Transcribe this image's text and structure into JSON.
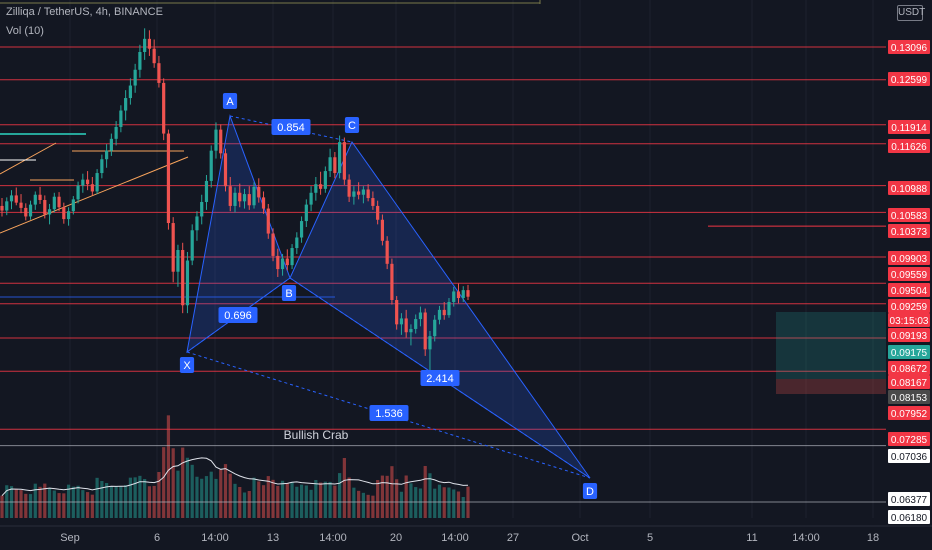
{
  "header": {
    "symbol_line": "Zilliqa / TetherUS, 4h, BINANCE",
    "volume_line": "Vol (10)",
    "currency": "USDT"
  },
  "colors": {
    "background": "#131722",
    "up": "#26a69a",
    "down": "#ef5350",
    "pattern": "#2962ff",
    "level_line": "#f23645",
    "price_badge": "#f23645",
    "green_badge": "#26a69a",
    "grey_badge": "#4a4a4a",
    "white_badge": "#ffffff"
  },
  "chart_data": {
    "type": "candlestick",
    "title": "Zilliqa / TetherUS, 4h, BINANCE",
    "x_tick_labels": [
      "Sep",
      "6",
      "14:00",
      "13",
      "14:00",
      "20",
      "14:00",
      "27",
      "Oct",
      "5",
      "11",
      "14:00",
      "18"
    ],
    "price_axis_labels": [
      {
        "value": "0.13096",
        "style": "red"
      },
      {
        "value": "0.12599",
        "style": "red"
      },
      {
        "value": "0.11914",
        "style": "red"
      },
      {
        "value": "0.11626",
        "style": "red"
      },
      {
        "value": "0.10988",
        "style": "red"
      },
      {
        "value": "0.10583",
        "style": "red"
      },
      {
        "value": "0.10373",
        "style": "red"
      },
      {
        "value": "0.09903",
        "style": "red"
      },
      {
        "value": "0.09559",
        "style": "red"
      },
      {
        "value": "0.09504",
        "style": "red"
      },
      {
        "value": "0.09259",
        "style": "red"
      },
      {
        "value": "03:15:03",
        "style": "red"
      },
      {
        "value": "0.09193",
        "style": "red"
      },
      {
        "value": "0.09175",
        "style": "green"
      },
      {
        "value": "0.08672",
        "style": "red"
      },
      {
        "value": "0.08167",
        "style": "red"
      },
      {
        "value": "0.08153",
        "style": "grey"
      },
      {
        "value": "0.07952",
        "style": "red"
      },
      {
        "value": "0.07285",
        "style": "red"
      },
      {
        "value": "0.07036",
        "style": "white"
      },
      {
        "value": "0.06377",
        "style": "white"
      },
      {
        "value": "0.06180",
        "style": "white"
      }
    ],
    "horizontal_levels": [
      0.13096,
      0.12599,
      0.11914,
      0.11626,
      0.10988,
      0.10583,
      0.09903,
      0.09504,
      0.09193,
      0.08672,
      0.08167,
      0.07285
    ],
    "harmonic_pattern": {
      "name": "Bullish Crab",
      "points": [
        {
          "label": "X",
          "price": 0.0875
        },
        {
          "label": "A",
          "price": 0.1196
        },
        {
          "label": "B",
          "price": 0.0953
        },
        {
          "label": "C",
          "price": 0.1171
        },
        {
          "label": "D",
          "price": 0.0735
        }
      ],
      "ratios": [
        {
          "label": "0.854",
          "between": "A-C"
        },
        {
          "label": "0.696",
          "between": "X-B"
        },
        {
          "label": "2.414",
          "between": "B-D"
        },
        {
          "label": "1.536",
          "between": "X-D"
        }
      ]
    },
    "candles": [
      {
        "o": 0.1068,
        "h": 0.108,
        "l": 0.1052,
        "c": 0.1061
      },
      {
        "o": 0.1061,
        "h": 0.1081,
        "l": 0.1054,
        "c": 0.1075
      },
      {
        "o": 0.1075,
        "h": 0.1092,
        "l": 0.1063,
        "c": 0.1084
      },
      {
        "o": 0.1084,
        "h": 0.1096,
        "l": 0.1069,
        "c": 0.1073
      },
      {
        "o": 0.1073,
        "h": 0.1086,
        "l": 0.1057,
        "c": 0.1065
      },
      {
        "o": 0.1065,
        "h": 0.1072,
        "l": 0.1046,
        "c": 0.1052
      },
      {
        "o": 0.1052,
        "h": 0.1076,
        "l": 0.1047,
        "c": 0.107
      },
      {
        "o": 0.107,
        "h": 0.109,
        "l": 0.1062,
        "c": 0.1085
      },
      {
        "o": 0.1085,
        "h": 0.1097,
        "l": 0.1071,
        "c": 0.1077
      },
      {
        "o": 0.1077,
        "h": 0.1084,
        "l": 0.1049,
        "c": 0.1055
      },
      {
        "o": 0.1055,
        "h": 0.1071,
        "l": 0.104,
        "c": 0.1063
      },
      {
        "o": 0.1063,
        "h": 0.1088,
        "l": 0.1058,
        "c": 0.1082
      },
      {
        "o": 0.1082,
        "h": 0.1089,
        "l": 0.106,
        "c": 0.1066
      },
      {
        "o": 0.1066,
        "h": 0.1073,
        "l": 0.1041,
        "c": 0.1048
      },
      {
        "o": 0.1048,
        "h": 0.1066,
        "l": 0.1038,
        "c": 0.106
      },
      {
        "o": 0.106,
        "h": 0.1083,
        "l": 0.1055,
        "c": 0.1078
      },
      {
        "o": 0.1078,
        "h": 0.1105,
        "l": 0.1072,
        "c": 0.1099
      },
      {
        "o": 0.1099,
        "h": 0.1117,
        "l": 0.1088,
        "c": 0.1108
      },
      {
        "o": 0.1108,
        "h": 0.1121,
        "l": 0.1092,
        "c": 0.1101
      },
      {
        "o": 0.1101,
        "h": 0.1112,
        "l": 0.1084,
        "c": 0.109
      },
      {
        "o": 0.109,
        "h": 0.1124,
        "l": 0.1086,
        "c": 0.1118
      },
      {
        "o": 0.1118,
        "h": 0.1146,
        "l": 0.111,
        "c": 0.1139
      },
      {
        "o": 0.1139,
        "h": 0.1162,
        "l": 0.1126,
        "c": 0.1152
      },
      {
        "o": 0.1152,
        "h": 0.1178,
        "l": 0.1144,
        "c": 0.117
      },
      {
        "o": 0.117,
        "h": 0.1197,
        "l": 0.116,
        "c": 0.1188
      },
      {
        "o": 0.1188,
        "h": 0.1221,
        "l": 0.118,
        "c": 0.1213
      },
      {
        "o": 0.1213,
        "h": 0.1244,
        "l": 0.1198,
        "c": 0.1232
      },
      {
        "o": 0.1232,
        "h": 0.1262,
        "l": 0.1222,
        "c": 0.1251
      },
      {
        "o": 0.1251,
        "h": 0.1284,
        "l": 0.124,
        "c": 0.1275
      },
      {
        "o": 0.1275,
        "h": 0.1313,
        "l": 0.1263,
        "c": 0.1302
      },
      {
        "o": 0.1302,
        "h": 0.1338,
        "l": 0.129,
        "c": 0.1322
      },
      {
        "o": 0.1322,
        "h": 0.1335,
        "l": 0.1296,
        "c": 0.1307
      },
      {
        "o": 0.1307,
        "h": 0.1321,
        "l": 0.1278,
        "c": 0.1285
      },
      {
        "o": 0.1285,
        "h": 0.1296,
        "l": 0.1248,
        "c": 0.1255
      },
      {
        "o": 0.1255,
        "h": 0.1262,
        "l": 0.1168,
        "c": 0.1178
      },
      {
        "o": 0.1178,
        "h": 0.1184,
        "l": 0.1032,
        "c": 0.1042
      },
      {
        "o": 0.1042,
        "h": 0.1051,
        "l": 0.0952,
        "c": 0.0968
      },
      {
        "o": 0.0968,
        "h": 0.1009,
        "l": 0.0945,
        "c": 0.1001
      },
      {
        "o": 0.1001,
        "h": 0.1012,
        "l": 0.0905,
        "c": 0.0917
      },
      {
        "o": 0.0917,
        "h": 0.0998,
        "l": 0.0905,
        "c": 0.0985
      },
      {
        "o": 0.0985,
        "h": 0.104,
        "l": 0.0978,
        "c": 0.1031
      },
      {
        "o": 0.1031,
        "h": 0.106,
        "l": 0.1015,
        "c": 0.1052
      },
      {
        "o": 0.1052,
        "h": 0.1085,
        "l": 0.104,
        "c": 0.1074
      },
      {
        "o": 0.1074,
        "h": 0.1115,
        "l": 0.1062,
        "c": 0.1106
      },
      {
        "o": 0.1106,
        "h": 0.116,
        "l": 0.1096,
        "c": 0.1152
      },
      {
        "o": 0.1152,
        "h": 0.1195,
        "l": 0.114,
        "c": 0.1184
      },
      {
        "o": 0.1184,
        "h": 0.1192,
        "l": 0.114,
        "c": 0.1148
      },
      {
        "o": 0.1148,
        "h": 0.1155,
        "l": 0.109,
        "c": 0.1098
      },
      {
        "o": 0.1098,
        "h": 0.1112,
        "l": 0.106,
        "c": 0.1068
      },
      {
        "o": 0.1068,
        "h": 0.1096,
        "l": 0.1058,
        "c": 0.1088
      },
      {
        "o": 0.1088,
        "h": 0.1102,
        "l": 0.1066,
        "c": 0.1075
      },
      {
        "o": 0.1075,
        "h": 0.1094,
        "l": 0.1064,
        "c": 0.1086
      },
      {
        "o": 0.1086,
        "h": 0.1098,
        "l": 0.1062,
        "c": 0.1069
      },
      {
        "o": 0.1069,
        "h": 0.1104,
        "l": 0.1064,
        "c": 0.1097
      },
      {
        "o": 0.1097,
        "h": 0.111,
        "l": 0.1073,
        "c": 0.1081
      },
      {
        "o": 0.1081,
        "h": 0.109,
        "l": 0.1056,
        "c": 0.1064
      },
      {
        "o": 0.1064,
        "h": 0.1071,
        "l": 0.1018,
        "c": 0.1026
      },
      {
        "o": 0.1026,
        "h": 0.1034,
        "l": 0.0984,
        "c": 0.0992
      },
      {
        "o": 0.0992,
        "h": 0.1003,
        "l": 0.096,
        "c": 0.0972
      },
      {
        "o": 0.0972,
        "h": 0.0995,
        "l": 0.0962,
        "c": 0.0988
      },
      {
        "o": 0.0988,
        "h": 0.1002,
        "l": 0.097,
        "c": 0.0978
      },
      {
        "o": 0.0978,
        "h": 0.101,
        "l": 0.0972,
        "c": 0.1004
      },
      {
        "o": 0.1004,
        "h": 0.1028,
        "l": 0.0995,
        "c": 0.102
      },
      {
        "o": 0.102,
        "h": 0.1052,
        "l": 0.1012,
        "c": 0.1045
      },
      {
        "o": 0.1045,
        "h": 0.1078,
        "l": 0.1036,
        "c": 0.107
      },
      {
        "o": 0.107,
        "h": 0.1098,
        "l": 0.106,
        "c": 0.1088
      },
      {
        "o": 0.1088,
        "h": 0.1112,
        "l": 0.1076,
        "c": 0.1101
      },
      {
        "o": 0.1101,
        "h": 0.112,
        "l": 0.1085,
        "c": 0.1094
      },
      {
        "o": 0.1094,
        "h": 0.1128,
        "l": 0.1088,
        "c": 0.1121
      },
      {
        "o": 0.1121,
        "h": 0.1155,
        "l": 0.1112,
        "c": 0.1142
      },
      {
        "o": 0.1142,
        "h": 0.115,
        "l": 0.111,
        "c": 0.1118
      },
      {
        "o": 0.1118,
        "h": 0.1175,
        "l": 0.111,
        "c": 0.1165
      },
      {
        "o": 0.1165,
        "h": 0.1172,
        "l": 0.11,
        "c": 0.1108
      },
      {
        "o": 0.1108,
        "h": 0.1116,
        "l": 0.1074,
        "c": 0.1082
      },
      {
        "o": 0.1082,
        "h": 0.1098,
        "l": 0.107,
        "c": 0.109
      },
      {
        "o": 0.109,
        "h": 0.1104,
        "l": 0.1078,
        "c": 0.1085
      },
      {
        "o": 0.1085,
        "h": 0.1098,
        "l": 0.1072,
        "c": 0.1093
      },
      {
        "o": 0.1093,
        "h": 0.1101,
        "l": 0.1075,
        "c": 0.108
      },
      {
        "o": 0.108,
        "h": 0.109,
        "l": 0.1062,
        "c": 0.1068
      },
      {
        "o": 0.1068,
        "h": 0.1076,
        "l": 0.104,
        "c": 0.1047
      },
      {
        "o": 0.1047,
        "h": 0.1055,
        "l": 0.1008,
        "c": 0.1015
      },
      {
        "o": 0.1015,
        "h": 0.1022,
        "l": 0.0972,
        "c": 0.098
      },
      {
        "o": 0.098,
        "h": 0.0988,
        "l": 0.0918,
        "c": 0.0925
      },
      {
        "o": 0.0925,
        "h": 0.0931,
        "l": 0.088,
        "c": 0.0888
      },
      {
        "o": 0.0888,
        "h": 0.0905,
        "l": 0.0872,
        "c": 0.0897
      },
      {
        "o": 0.0897,
        "h": 0.091,
        "l": 0.0868,
        "c": 0.0876
      },
      {
        "o": 0.0876,
        "h": 0.0888,
        "l": 0.0856,
        "c": 0.0881
      },
      {
        "o": 0.0881,
        "h": 0.0903,
        "l": 0.0874,
        "c": 0.0896
      },
      {
        "o": 0.0896,
        "h": 0.0915,
        "l": 0.0885,
        "c": 0.0906
      },
      {
        "o": 0.0906,
        "h": 0.0912,
        "l": 0.084,
        "c": 0.085
      },
      {
        "o": 0.085,
        "h": 0.0878,
        "l": 0.0815,
        "c": 0.087
      },
      {
        "o": 0.087,
        "h": 0.0902,
        "l": 0.0862,
        "c": 0.0895
      },
      {
        "o": 0.0895,
        "h": 0.0916,
        "l": 0.0888,
        "c": 0.091
      },
      {
        "o": 0.091,
        "h": 0.0922,
        "l": 0.0895,
        "c": 0.0902
      },
      {
        "o": 0.0902,
        "h": 0.0928,
        "l": 0.0898,
        "c": 0.0922
      },
      {
        "o": 0.0922,
        "h": 0.0945,
        "l": 0.0915,
        "c": 0.0938
      },
      {
        "o": 0.0938,
        "h": 0.095,
        "l": 0.092,
        "c": 0.0928
      },
      {
        "o": 0.0928,
        "h": 0.0946,
        "l": 0.0922,
        "c": 0.094
      },
      {
        "o": 0.094,
        "h": 0.0948,
        "l": 0.0925,
        "c": 0.093
      }
    ]
  },
  "annotations": {
    "pattern_title": "Bullish Crab"
  }
}
